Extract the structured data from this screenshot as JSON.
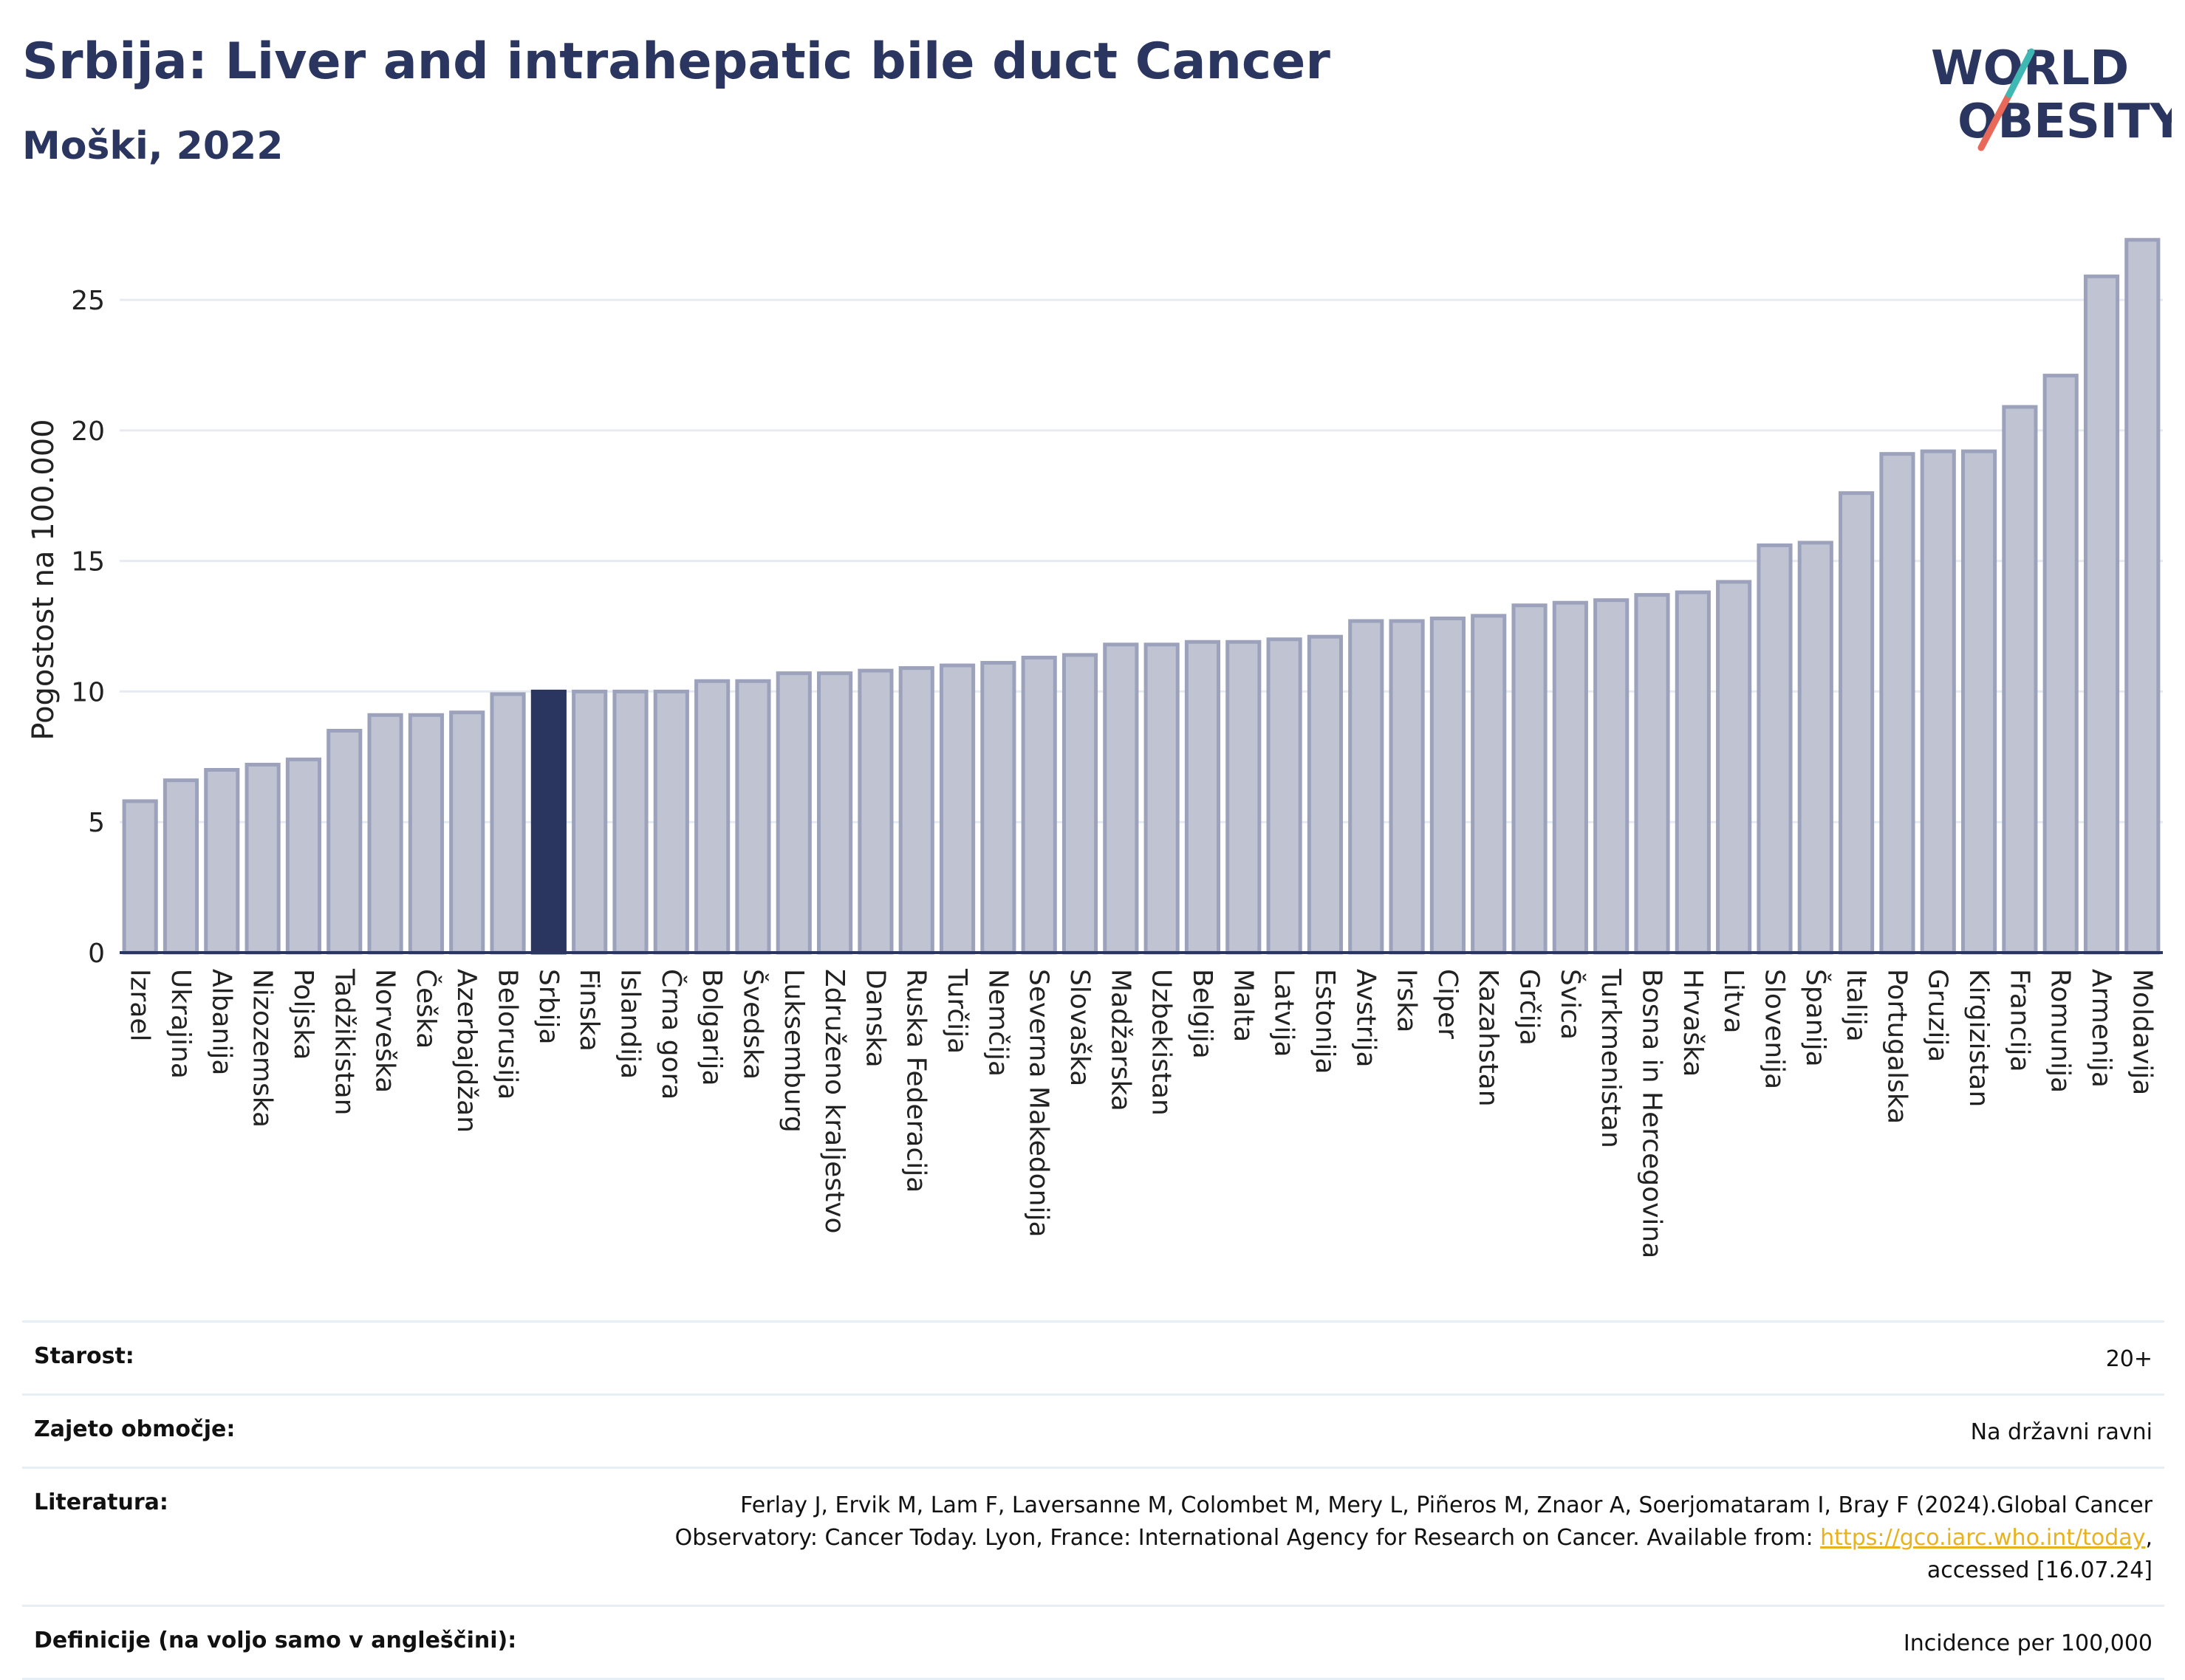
{
  "header": {
    "title": "Srbija: Liver and intrahepatic bile duct Cancer",
    "subtitle": "Moški, 2022",
    "logo_line1": "WORLD",
    "logo_line2": "OBESITY"
  },
  "chart_data": {
    "type": "bar",
    "ylabel": "Pogostost na 100.000",
    "ylim": [
      0,
      28
    ],
    "yticks": [
      0,
      5,
      10,
      15,
      20,
      25
    ],
    "grid": true,
    "highlight": "Srbija",
    "colors": {
      "bar": "#bfc3d2",
      "bar_border": "#9ca2bb",
      "highlight": "#2b3660",
      "grid": "#e6ebf2"
    },
    "categories": [
      "Izrael",
      "Ukrajina",
      "Albanija",
      "Nizozemska",
      "Poljska",
      "Tadžikistan",
      "Norveška",
      "Češka",
      "Azerbajdžan",
      "Belorusija",
      "Srbija",
      "Finska",
      "Islandija",
      "Črna gora",
      "Bolgarija",
      "Švedska",
      "Luksemburg",
      "Združeno kraljestvo",
      "Danska",
      "Ruska Federacija",
      "Turčija",
      "Nemčija",
      "Severna Makedonija",
      "Slovaška",
      "Madžarska",
      "Uzbekistan",
      "Belgija",
      "Malta",
      "Latvija",
      "Estonija",
      "Avstrija",
      "Irska",
      "Ciper",
      "Kazahstan",
      "Grčija",
      "Švica",
      "Turkmenistan",
      "Bosna in Hercegovina",
      "Hrvaška",
      "Litva",
      "Slovenija",
      "Španija",
      "Italija",
      "Portugalska",
      "Gruzija",
      "Kirgizistan",
      "Francija",
      "Romunija",
      "Armenija",
      "Moldavija"
    ],
    "values": [
      5.8,
      6.6,
      7.0,
      7.2,
      7.4,
      8.5,
      9.1,
      9.1,
      9.2,
      9.9,
      10.0,
      10.0,
      10.0,
      10.0,
      10.4,
      10.4,
      10.7,
      10.7,
      10.8,
      10.9,
      11.0,
      11.1,
      11.3,
      11.4,
      11.8,
      11.8,
      11.9,
      11.9,
      12.0,
      12.1,
      12.7,
      12.7,
      12.8,
      12.9,
      13.3,
      13.4,
      13.5,
      13.7,
      13.8,
      14.2,
      15.6,
      15.7,
      17.6,
      19.1,
      19.2,
      19.2,
      20.9,
      22.1,
      25.9,
      27.3
    ]
  },
  "meta": {
    "age_label": "Starost:",
    "age_value": "20+",
    "coverage_label": "Zajeto območje:",
    "coverage_value": "Na državni ravni",
    "literature_label": "Literatura:",
    "literature_line1": "Ferlay J, Ervik M, Lam F, Laversanne M, Colombet M, Mery L, Piñeros M, Znaor A, Soerjomataram I, Bray F (2024).Global Cancer",
    "literature_line2_pre": "Observatory: Cancer Today. Lyon, France: International Agency for Research on Cancer. Available from: ",
    "literature_link": "https://gco.iarc.who.int/today",
    "literature_line2_post": ",",
    "literature_line3": "accessed [16.07.24]",
    "definitions_label": "Definicije (na voljo samo v angleščini):",
    "definitions_value": "Incidence per 100,000"
  }
}
